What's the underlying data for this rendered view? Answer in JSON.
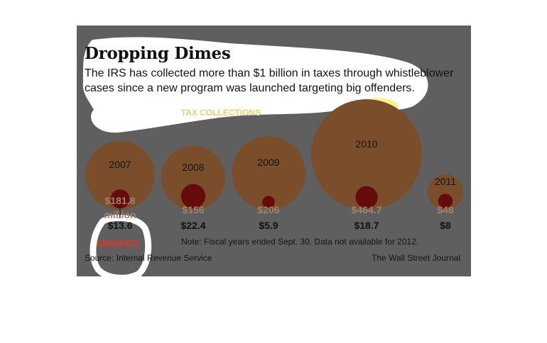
{
  "title": "Dropping Dimes",
  "subtitle": "The IRS has collected more than $1 billion in taxes through whistleblower cases since a new program was launched targeting big offenders.",
  "note": "Note: Fiscal years ended Sept. 30. Data not available for 2012.",
  "source": "Source: Internal Revenue Service",
  "credit": "The Wall Street Journal",
  "colors": {
    "collections": "#7b4e2b",
    "awards": "#650b0b",
    "collections_label": "#a0826e",
    "awards_label": "#d9362b",
    "highlight": "#ffffff",
    "highlight_yellow": "#f7f28a"
  },
  "chart_data": {
    "type": "bubble",
    "categories": [
      "2007",
      "2008",
      "2009",
      "2010",
      "2011"
    ],
    "series": [
      {
        "name": "TAX COLLECTIONS",
        "values": [
          181.8,
          156,
          206,
          464.7,
          48
        ],
        "labels": [
          "$181.8",
          "$156",
          "$206",
          "$464.7",
          "$48"
        ]
      },
      {
        "name": "AWARDS",
        "values": [
          13.6,
          22.4,
          5.9,
          18.7,
          8
        ],
        "labels": [
          "$13.6",
          "$22.4",
          "$5.9",
          "$18.7",
          "$8"
        ]
      }
    ],
    "first_label_unit": "million"
  }
}
